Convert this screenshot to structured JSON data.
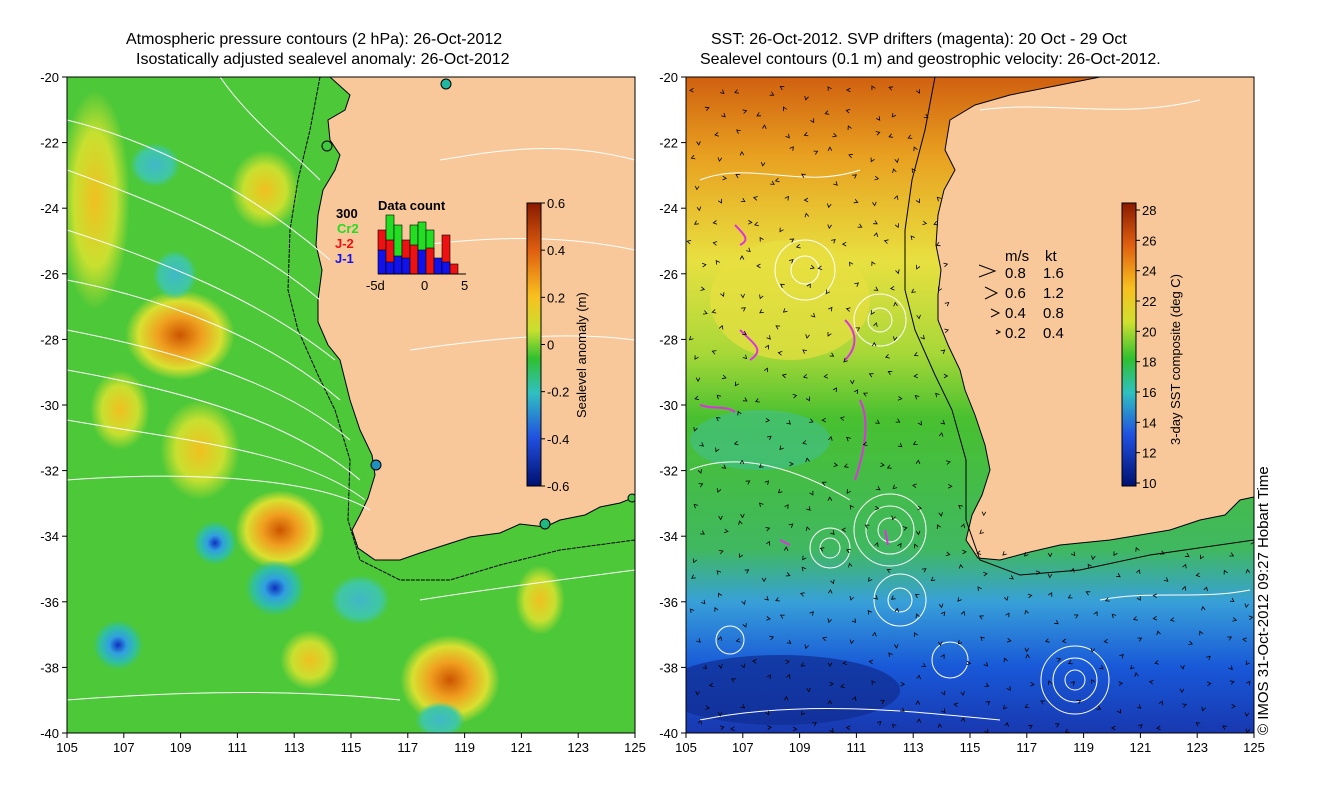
{
  "left_panel": {
    "title_line1": "Atmospheric pressure contours (2 hPa): 26-Oct-2012",
    "title_line2": "Isostatically adjusted sealevel anomaly: 26-Oct-2012",
    "x_ticks": [
      "105",
      "107",
      "109",
      "111",
      "113",
      "115",
      "117",
      "119",
      "121",
      "123",
      "125"
    ],
    "y_ticks": [
      "-20",
      "-22",
      "-24",
      "-26",
      "-28",
      "-30",
      "-32",
      "-34",
      "-36",
      "-38",
      "-40"
    ],
    "colorbar": {
      "label": "Sealevel anomaly (m)",
      "ticks": [
        "0.6",
        "0.4",
        "0.2",
        "0",
        "-0.2",
        "-0.4",
        "-0.6"
      ],
      "range": [
        -0.6,
        0.6
      ]
    },
    "inset": {
      "title": "Data count",
      "max_label": "300",
      "legend": [
        {
          "name": "Cr2",
          "color": "#22dd22"
        },
        {
          "name": "J-2",
          "color": "#ee1111"
        },
        {
          "name": "J-1",
          "color": "#1111ee"
        }
      ],
      "x_labels": [
        "-5d",
        "0",
        "5"
      ]
    }
  },
  "right_panel": {
    "title_line1": "SST: 26-Oct-2012. SVP drifters (magenta): 20 Oct - 29 Oct",
    "title_line2": "Sealevel contours (0.1 m) and geostrophic velocity: 26-Oct-2012.",
    "x_ticks": [
      "105",
      "107",
      "109",
      "111",
      "113",
      "115",
      "117",
      "119",
      "121",
      "123",
      "125"
    ],
    "y_ticks": [
      "-20",
      "-22",
      "-24",
      "-26",
      "-28",
      "-30",
      "-32",
      "-34",
      "-36",
      "-38",
      "-40"
    ],
    "colorbar": {
      "label": "3-day SST composite (deg C)",
      "ticks": [
        "28",
        "26",
        "24",
        "22",
        "20",
        "18",
        "16",
        "14",
        "12",
        "10"
      ],
      "range": [
        10,
        28
      ]
    },
    "velocity_legend": {
      "header_ms": "m/s",
      "header_kt": "kt",
      "rows": [
        {
          "ms": "0.8",
          "kt": "1.6"
        },
        {
          "ms": "0.6",
          "kt": "1.2"
        },
        {
          "ms": "0.4",
          "kt": "0.8"
        },
        {
          "ms": "0.2",
          "kt": "0.4"
        }
      ]
    }
  },
  "colors": {
    "land": "#f8c89a",
    "contour": "#ffffff",
    "drifter": "#dd33dd"
  },
  "copyright": "© IMOS 31-Oct-2012 09:27 Hobart Time"
}
